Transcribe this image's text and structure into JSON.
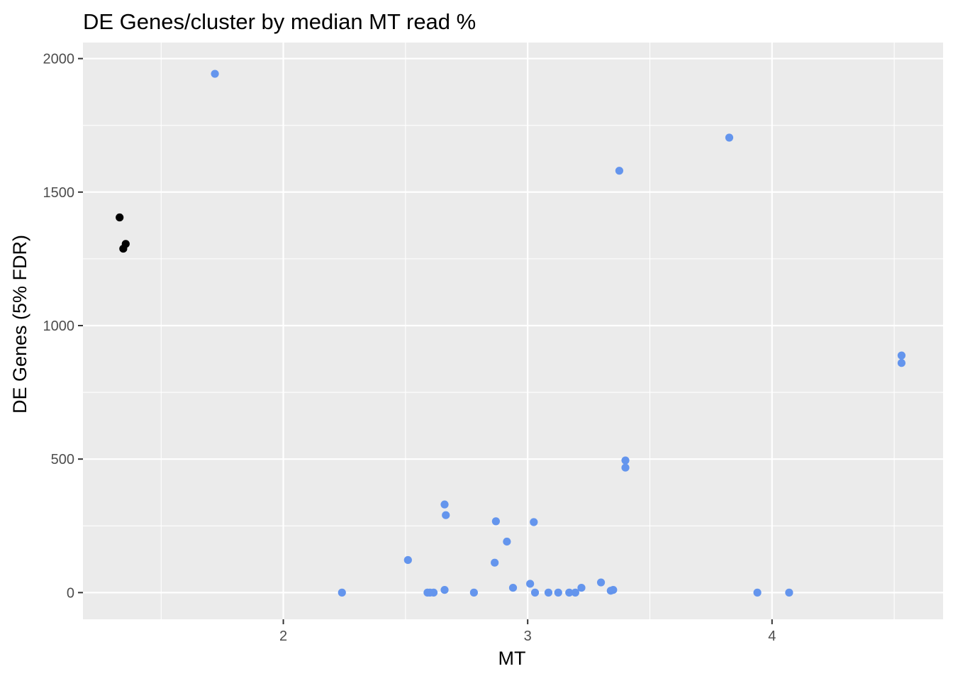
{
  "chart_data": {
    "type": "scatter",
    "title": "DE Genes/cluster by median MT read %",
    "xlabel": "MT",
    "ylabel": "DE Genes (5% FDR)",
    "xlim": [
      1.18,
      4.7
    ],
    "ylim": [
      -100,
      2060
    ],
    "xticks": [
      2,
      3,
      4
    ],
    "xtick_labels": [
      "2",
      "3",
      "4"
    ],
    "yticks": [
      0,
      500,
      1000,
      1500,
      2000
    ],
    "ytick_labels": [
      "0",
      "500",
      "1000",
      "1500",
      "2000"
    ],
    "x_minor": [
      1.5,
      2.5,
      3.5,
      4.5
    ],
    "y_minor": [
      250,
      750,
      1250,
      1750
    ],
    "grid": true,
    "colors": {
      "panel_bg": "#ebebeb",
      "grid": "#ffffff",
      "point_blue": "#6495ed",
      "point_black": "#000000"
    },
    "series": [
      {
        "color": "#000000",
        "points": [
          [
            1.33,
            1405
          ],
          [
            1.345,
            1288
          ],
          [
            1.355,
            1306
          ]
        ]
      },
      {
        "color": "#6495ed",
        "points": [
          [
            1.72,
            1943
          ],
          [
            2.24,
            0
          ],
          [
            2.51,
            122
          ],
          [
            2.59,
            0
          ],
          [
            2.6,
            0
          ],
          [
            2.615,
            0
          ],
          [
            2.66,
            10
          ],
          [
            2.66,
            330
          ],
          [
            2.665,
            290
          ],
          [
            2.78,
            0
          ],
          [
            2.865,
            112
          ],
          [
            2.87,
            267
          ],
          [
            2.915,
            191
          ],
          [
            2.94,
            18
          ],
          [
            3.01,
            33
          ],
          [
            3.025,
            264
          ],
          [
            3.03,
            0
          ],
          [
            3.085,
            0
          ],
          [
            3.125,
            0
          ],
          [
            3.17,
            0
          ],
          [
            3.195,
            0
          ],
          [
            3.22,
            18
          ],
          [
            3.3,
            38
          ],
          [
            3.34,
            7
          ],
          [
            3.35,
            10
          ],
          [
            3.375,
            1580
          ],
          [
            3.4,
            495
          ],
          [
            3.4,
            468
          ],
          [
            3.825,
            1704
          ],
          [
            3.94,
            0
          ],
          [
            4.07,
            0
          ],
          [
            4.53,
            888
          ],
          [
            4.53,
            860
          ]
        ]
      }
    ]
  }
}
